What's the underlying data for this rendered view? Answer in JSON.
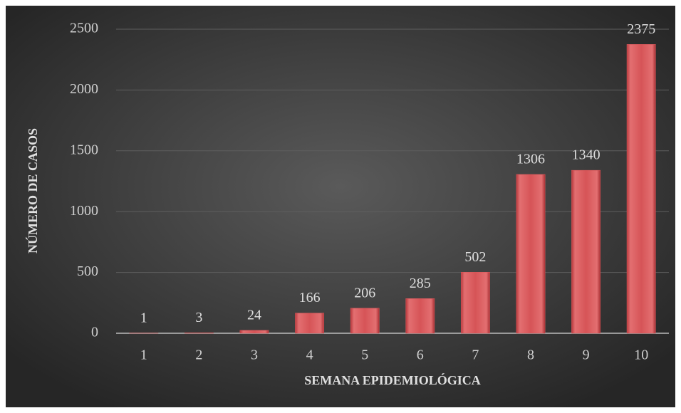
{
  "chart_data": {
    "type": "bar",
    "x_label": "SEMANA EPIDEMIOLÓGICA",
    "y_label": "NÚMERO DE CASOS",
    "categories": [
      "1",
      "2",
      "3",
      "4",
      "5",
      "6",
      "7",
      "8",
      "9",
      "10"
    ],
    "values": [
      1,
      3,
      24,
      166,
      206,
      285,
      502,
      1306,
      1340,
      2375
    ],
    "color": "#d9585b",
    "ylim": [
      0,
      2500
    ],
    "yticks": [
      0,
      500,
      1000,
      1500,
      2000,
      2500
    ],
    "grid": true
  }
}
